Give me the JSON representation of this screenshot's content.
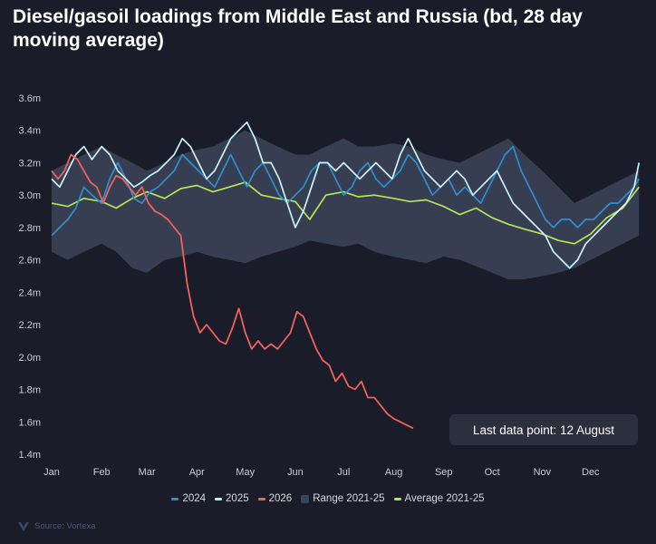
{
  "title": "Diesel/gasoil loadings from Middle East and Russia (bd, 28 day moving average)",
  "annotation": "Last data point: 12 August",
  "source": "Source: Vortexa",
  "colors": {
    "s2024": "#2e8fd0",
    "s2025": "#c9f4ff",
    "s2026": "#f0625a",
    "range": "#3b4357",
    "average": "#b5e655",
    "background": "#1a1d29"
  },
  "chart_data": {
    "type": "line",
    "x_unit": "day_of_year",
    "xlim": [
      0,
      365
    ],
    "ylim": [
      1400000,
      3600000
    ],
    "y_ticks": [
      {
        "value": 1400000,
        "label": "1.4m"
      },
      {
        "value": 1600000,
        "label": "1.6m"
      },
      {
        "value": 1800000,
        "label": "1.8m"
      },
      {
        "value": 2000000,
        "label": "2.0m"
      },
      {
        "value": 2200000,
        "label": "2.2m"
      },
      {
        "value": 2400000,
        "label": "2.4m"
      },
      {
        "value": 2600000,
        "label": "2.6m"
      },
      {
        "value": 2800000,
        "label": "2.8m"
      },
      {
        "value": 3000000,
        "label": "3.0m"
      },
      {
        "value": 3200000,
        "label": "3.2m"
      },
      {
        "value": 3400000,
        "label": "3.4m"
      },
      {
        "value": 3600000,
        "label": "3.6m"
      }
    ],
    "x_ticks": [
      {
        "value": 0,
        "label": "Jan"
      },
      {
        "value": 31,
        "label": "Feb"
      },
      {
        "value": 59,
        "label": "Mar"
      },
      {
        "value": 90,
        "label": "Apr"
      },
      {
        "value": 120,
        "label": "May"
      },
      {
        "value": 151,
        "label": "Jun"
      },
      {
        "value": 181,
        "label": "Jul"
      },
      {
        "value": 212,
        "label": "Aug"
      },
      {
        "value": 243,
        "label": "Sep"
      },
      {
        "value": 273,
        "label": "Oct"
      },
      {
        "value": 304,
        "label": "Nov"
      },
      {
        "value": 334,
        "label": "Dec"
      }
    ],
    "grid": false,
    "legend_position": "bottom-center",
    "range": {
      "name": "Range 2021-25",
      "x": [
        0,
        10,
        20,
        31,
        40,
        50,
        59,
        70,
        80,
        90,
        100,
        110,
        120,
        130,
        140,
        151,
        160,
        170,
        181,
        190,
        200,
        212,
        222,
        232,
        243,
        253,
        263,
        273,
        283,
        293,
        304,
        314,
        324,
        334,
        344,
        354,
        364
      ],
      "high": [
        3150000,
        3200000,
        3250000,
        3300000,
        3250000,
        3200000,
        3150000,
        3200000,
        3250000,
        3280000,
        3300000,
        3350000,
        3400000,
        3350000,
        3300000,
        3250000,
        3250000,
        3300000,
        3350000,
        3300000,
        3300000,
        3320000,
        3300000,
        3250000,
        3220000,
        3200000,
        3250000,
        3300000,
        3350000,
        3250000,
        3150000,
        3050000,
        2950000,
        3000000,
        3050000,
        3100000,
        3150000
      ],
      "low": [
        2650000,
        2600000,
        2650000,
        2700000,
        2650000,
        2550000,
        2520000,
        2600000,
        2620000,
        2650000,
        2620000,
        2600000,
        2580000,
        2620000,
        2650000,
        2680000,
        2720000,
        2700000,
        2680000,
        2700000,
        2650000,
        2620000,
        2600000,
        2580000,
        2620000,
        2600000,
        2560000,
        2520000,
        2480000,
        2480000,
        2500000,
        2520000,
        2550000,
        2600000,
        2650000,
        2700000,
        2750000
      ]
    },
    "series": [
      {
        "name": "2024",
        "x": [
          0,
          5,
          10,
          15,
          20,
          25,
          31,
          36,
          41,
          46,
          51,
          56,
          61,
          66,
          71,
          76,
          81,
          86,
          91,
          96,
          101,
          106,
          111,
          116,
          121,
          126,
          131,
          136,
          141,
          146,
          151,
          156,
          161,
          166,
          171,
          176,
          181,
          186,
          191,
          196,
          201,
          206,
          211,
          216,
          221,
          226,
          231,
          236,
          241,
          246,
          251,
          256,
          261,
          266,
          271,
          276,
          281,
          286,
          291,
          296,
          301,
          306,
          311,
          316,
          321,
          326,
          331,
          336,
          341,
          346,
          351,
          356,
          361,
          364
        ],
        "values": [
          2750000,
          2800000,
          2850000,
          2920000,
          3050000,
          3000000,
          2950000,
          3100000,
          3200000,
          3100000,
          2980000,
          2950000,
          3020000,
          3050000,
          3100000,
          3150000,
          3250000,
          3200000,
          3150000,
          3100000,
          3050000,
          3150000,
          3250000,
          3150000,
          3050000,
          3150000,
          3200000,
          3100000,
          3000000,
          2950000,
          3000000,
          3050000,
          3150000,
          3200000,
          3200000,
          3100000,
          3000000,
          3050000,
          3150000,
          3200000,
          3100000,
          3050000,
          3100000,
          3150000,
          3250000,
          3200000,
          3100000,
          3000000,
          3050000,
          3100000,
          3000000,
          3050000,
          3000000,
          2950000,
          3050000,
          3150000,
          3250000,
          3300000,
          3150000,
          3050000,
          2950000,
          2850000,
          2800000,
          2850000,
          2850000,
          2800000,
          2850000,
          2850000,
          2900000,
          2950000,
          2950000,
          3000000,
          3050000,
          3100000
        ]
      },
      {
        "name": "2025",
        "x": [
          0,
          5,
          10,
          15,
          20,
          25,
          31,
          36,
          41,
          46,
          51,
          56,
          61,
          66,
          71,
          76,
          81,
          86,
          91,
          96,
          101,
          106,
          111,
          116,
          121,
          126,
          131,
          136,
          141,
          146,
          151,
          156,
          161,
          166,
          171,
          176,
          181,
          186,
          191,
          196,
          201,
          206,
          211,
          216,
          221,
          226,
          231,
          236,
          241,
          246,
          251,
          256,
          261,
          266,
          271,
          276,
          281,
          286,
          291,
          296,
          301,
          306,
          311,
          316,
          321,
          326,
          331,
          336,
          341,
          346,
          351,
          356,
          361,
          364
        ],
        "values": [
          3100000,
          3050000,
          3150000,
          3250000,
          3300000,
          3220000,
          3300000,
          3250000,
          3150000,
          3100000,
          3050000,
          3080000,
          3120000,
          3150000,
          3200000,
          3250000,
          3350000,
          3300000,
          3200000,
          3100000,
          3150000,
          3250000,
          3350000,
          3400000,
          3450000,
          3350000,
          3200000,
          3200000,
          3100000,
          2950000,
          2800000,
          2900000,
          3050000,
          3200000,
          3200000,
          3150000,
          3200000,
          3150000,
          3100000,
          3150000,
          3200000,
          3150000,
          3100000,
          3250000,
          3350000,
          3250000,
          3150000,
          3100000,
          3050000,
          3100000,
          3150000,
          3100000,
          3000000,
          3050000,
          3100000,
          3150000,
          3050000,
          2950000,
          2900000,
          2850000,
          2800000,
          2750000,
          2650000,
          2600000,
          2550000,
          2600000,
          2700000,
          2750000,
          2800000,
          2850000,
          2900000,
          2950000,
          3050000,
          3200000
        ]
      },
      {
        "name": "2026",
        "x": [
          0,
          4,
          8,
          12,
          16,
          20,
          24,
          28,
          32,
          36,
          40,
          44,
          48,
          52,
          56,
          60,
          64,
          68,
          72,
          76,
          80,
          84,
          88,
          92,
          96,
          100,
          104,
          108,
          112,
          116,
          120,
          124,
          128,
          132,
          136,
          140,
          144,
          148,
          152,
          156,
          160,
          164,
          168,
          172,
          176,
          180,
          184,
          188,
          192,
          196,
          200,
          204,
          208,
          212,
          216,
          220,
          224
        ],
        "values": [
          3150000,
          3100000,
          3150000,
          3250000,
          3220000,
          3150000,
          3080000,
          3050000,
          2950000,
          3050000,
          3120000,
          3100000,
          3050000,
          3000000,
          3050000,
          2950000,
          2900000,
          2880000,
          2850000,
          2800000,
          2750000,
          2450000,
          2250000,
          2150000,
          2200000,
          2150000,
          2100000,
          2080000,
          2180000,
          2300000,
          2150000,
          2050000,
          2100000,
          2050000,
          2080000,
          2050000,
          2100000,
          2150000,
          2280000,
          2250000,
          2150000,
          2050000,
          1980000,
          1950000,
          1850000,
          1900000,
          1820000,
          1800000,
          1850000,
          1750000,
          1750000,
          1700000,
          1650000,
          1620000,
          1600000,
          1580000,
          1560000
        ]
      },
      {
        "name": "Average 2021-25",
        "x": [
          0,
          10,
          20,
          31,
          40,
          50,
          59,
          70,
          80,
          90,
          100,
          110,
          120,
          130,
          140,
          151,
          160,
          170,
          181,
          190,
          200,
          212,
          222,
          232,
          243,
          253,
          263,
          273,
          283,
          293,
          304,
          314,
          324,
          334,
          344,
          354,
          364
        ],
        "values": [
          2950000,
          2930000,
          2980000,
          2960000,
          2920000,
          2980000,
          3020000,
          2980000,
          3040000,
          3060000,
          3020000,
          3050000,
          3080000,
          3000000,
          2980000,
          2960000,
          2850000,
          3000000,
          3020000,
          2990000,
          3000000,
          2980000,
          2960000,
          2970000,
          2930000,
          2880000,
          2920000,
          2860000,
          2820000,
          2790000,
          2760000,
          2720000,
          2700000,
          2760000,
          2860000,
          2920000,
          3050000
        ]
      }
    ]
  },
  "legend": [
    {
      "label": "2024",
      "key": "s2024",
      "kind": "line"
    },
    {
      "label": "2025",
      "key": "s2025",
      "kind": "line"
    },
    {
      "label": "2026",
      "key": "s2026",
      "kind": "line"
    },
    {
      "label": "Range 2021-25",
      "key": "range",
      "kind": "box"
    },
    {
      "label": "Average 2021-25",
      "key": "average",
      "kind": "line"
    }
  ]
}
